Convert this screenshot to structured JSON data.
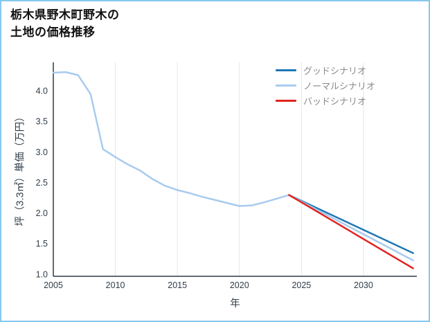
{
  "chart_data": {
    "type": "line",
    "title": "栃木県野木町野木の土地の価格推移",
    "title_lines": [
      "栃木県野木町野木の",
      "土地の価格推移"
    ],
    "xlabel": "年",
    "ylabel": "坪（3.3㎡）単価（万円）",
    "xlim": [
      2005,
      2034.3
    ],
    "ylim": [
      0.97,
      4.47
    ],
    "xticks": [
      2005,
      2010,
      2015,
      2020,
      2025,
      2030
    ],
    "yticks": [
      1.0,
      1.5,
      2.0,
      2.5,
      3.0,
      3.5,
      4.0
    ],
    "grid": "vertical-only",
    "legend_position": "top-right",
    "colors": {
      "frame_border": "#85c8ef",
      "axis": "#2f3b47",
      "tick": "#2f3b47",
      "grid": "#dfe6ee",
      "historical": "#a8cbee",
      "good": "#1f77b4",
      "normal": "#a8cbee",
      "bad": "#e02421"
    },
    "series": [
      {
        "key": "historical",
        "name": "historical",
        "color": "#a8cbee",
        "x": [
          2005,
          2006,
          2007,
          2008,
          2009,
          2010,
          2011,
          2012,
          2013,
          2014,
          2015,
          2016,
          2017,
          2018,
          2019,
          2020,
          2021,
          2022,
          2023,
          2024
        ],
        "y": [
          4.3,
          4.31,
          4.26,
          3.95,
          3.05,
          2.92,
          2.8,
          2.7,
          2.56,
          2.45,
          2.38,
          2.33,
          2.27,
          2.22,
          2.17,
          2.12,
          2.13,
          2.18,
          2.24,
          2.3
        ]
      },
      {
        "key": "good-scenario",
        "name": "グッドシナリオ",
        "color": "#1f77b4",
        "x": [
          2024,
          2034
        ],
        "y": [
          2.3,
          1.35
        ]
      },
      {
        "key": "normal-scenario",
        "name": "ノーマルシナリオ",
        "color": "#a8cbee",
        "x": [
          2024,
          2034
        ],
        "y": [
          2.3,
          1.23
        ]
      },
      {
        "key": "bad-scenario",
        "name": "バッドシナリオ",
        "color": "#e02421",
        "x": [
          2024,
          2034
        ],
        "y": [
          2.3,
          1.1
        ]
      }
    ],
    "legend": [
      {
        "label": "グッドシナリオ",
        "color": "#1f77b4"
      },
      {
        "label": "ノーマルシナリオ",
        "color": "#a8cbee"
      },
      {
        "label": "バッドシナリオ",
        "color": "#e02421"
      }
    ]
  }
}
